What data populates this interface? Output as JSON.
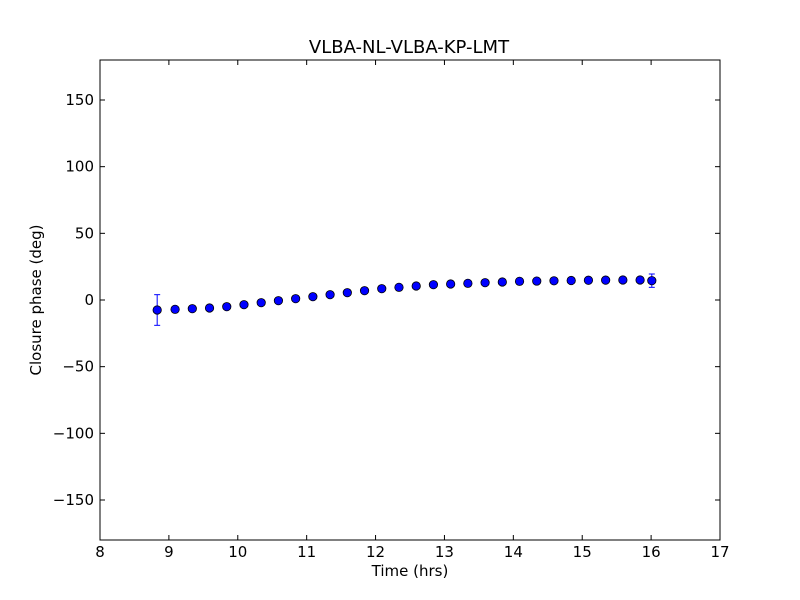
{
  "chart_data": {
    "type": "scatter",
    "title": "VLBA-NL-VLBA-KP-LMT",
    "xlabel": "Time (hrs)",
    "ylabel": "Closure phase (deg)",
    "xlim": [
      8,
      17
    ],
    "ylim": [
      -180,
      180
    ],
    "xticks": [
      8,
      9,
      10,
      11,
      12,
      13,
      14,
      15,
      16,
      17
    ],
    "xtick_labels": [
      "8",
      "9",
      "10",
      "11",
      "12",
      "13",
      "14",
      "15",
      "16",
      "17"
    ],
    "yticks": [
      -150,
      -100,
      -50,
      0,
      50,
      100,
      150
    ],
    "ytick_labels": [
      "−150",
      "−100",
      "−50",
      "0",
      "50",
      "100",
      "150"
    ],
    "grid": false,
    "marker_color": "#0000ff",
    "errorbar_color": "#0000ff",
    "series": [
      {
        "x": [
          8.83,
          9.09,
          9.34,
          9.59,
          9.84,
          10.09,
          10.34,
          10.59,
          10.84,
          11.09,
          11.34,
          11.59,
          11.84,
          12.09,
          12.34,
          12.59,
          12.84,
          13.09,
          13.34,
          13.59,
          13.84,
          14.09,
          14.34,
          14.59,
          14.84,
          15.09,
          15.34,
          15.59,
          15.84,
          16.01
        ],
        "y": [
          -7.5,
          -7.0,
          -6.5,
          -6.0,
          -5.0,
          -3.5,
          -2.0,
          -0.5,
          1.0,
          2.5,
          4.0,
          5.5,
          7.0,
          8.5,
          9.5,
          10.5,
          11.5,
          12.0,
          12.5,
          13.0,
          13.5,
          14.0,
          14.2,
          14.4,
          14.6,
          14.8,
          14.9,
          15.0,
          15.0,
          14.5
        ],
        "yerr": [
          11.5,
          1.5,
          1.2,
          1.2,
          1.2,
          1.2,
          1.2,
          1.2,
          1.2,
          1.2,
          1.2,
          1.2,
          1.2,
          1.2,
          1.2,
          1.2,
          1.2,
          1.2,
          1.2,
          1.2,
          1.2,
          1.2,
          1.2,
          1.2,
          1.2,
          1.2,
          1.2,
          1.2,
          1.2,
          5.0
        ]
      }
    ]
  }
}
